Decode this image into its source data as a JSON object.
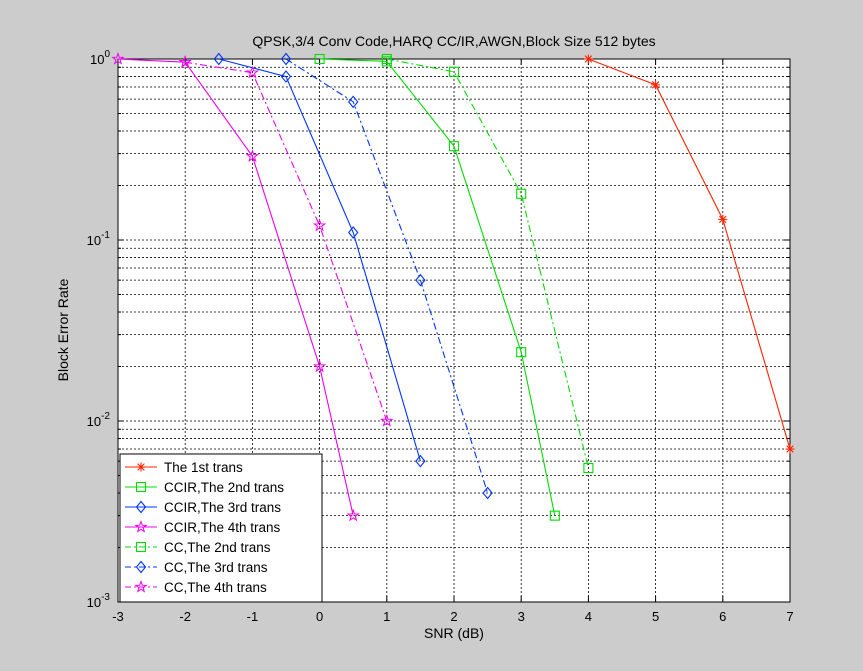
{
  "chart_data": {
    "type": "line",
    "title": "QPSK,3/4 Conv Code,HARQ CC/IR,AWGN,Block Size 512 bytes",
    "xlabel": "SNR (dB)",
    "ylabel": "Block Error Rate",
    "xlim": [
      -3,
      7
    ],
    "ylim": [
      0.001,
      1
    ],
    "yscale": "log",
    "grid": true,
    "legend_position": "bottom-left",
    "x_ticks": [
      "-3",
      "-2",
      "-1",
      "0",
      "1",
      "2",
      "3",
      "4",
      "5",
      "6",
      "7"
    ],
    "y_ticks": [
      {
        "base": "10",
        "exp": "0"
      },
      {
        "base": "10",
        "exp": "-1"
      },
      {
        "base": "10",
        "exp": "-2"
      },
      {
        "base": "10",
        "exp": "-3"
      }
    ],
    "series": [
      {
        "name": "The 1st trans",
        "color": "#ff2200",
        "dash": "solid",
        "marker": "asterisk",
        "x": [
          4,
          5,
          6,
          7
        ],
        "y": [
          1.0,
          0.72,
          0.13,
          0.007
        ]
      },
      {
        "name": "CCIR,The 2nd trans",
        "color": "#00dd00",
        "dash": "solid",
        "marker": "square",
        "x": [
          0,
          1,
          2,
          3,
          3.5
        ],
        "y": [
          1.0,
          0.97,
          0.33,
          0.024,
          0.003
        ]
      },
      {
        "name": "CCIR,The 3rd trans",
        "color": "#0033ff",
        "dash": "solid",
        "marker": "diamond",
        "x": [
          -1.5,
          -0.5,
          0.5,
          1.5
        ],
        "y": [
          1.0,
          0.8,
          0.11,
          0.006
        ]
      },
      {
        "name": "CCIR,The 4th trans",
        "color": "#ee00ee",
        "dash": "solid",
        "marker": "star",
        "x": [
          -3,
          -2,
          -1,
          0,
          0.5
        ],
        "y": [
          1.0,
          0.96,
          0.29,
          0.02,
          0.003
        ]
      },
      {
        "name": "CC,The 2nd trans",
        "color": "#00dd00",
        "dash": "dashdot",
        "marker": "square",
        "x": [
          1,
          2,
          3,
          4
        ],
        "y": [
          1.0,
          0.85,
          0.18,
          0.0055
        ]
      },
      {
        "name": "CC,The 3rd trans",
        "color": "#0033ff",
        "dash": "dashdot",
        "marker": "diamond",
        "x": [
          -0.5,
          0.5,
          1.5,
          2.5
        ],
        "y": [
          1.0,
          0.58,
          0.06,
          0.004
        ]
      },
      {
        "name": "CC,The 4th trans",
        "color": "#ee00ee",
        "dash": "dashdot",
        "marker": "star",
        "x": [
          -2,
          -1,
          0,
          1
        ],
        "y": [
          0.96,
          0.84,
          0.12,
          0.01
        ]
      }
    ]
  }
}
